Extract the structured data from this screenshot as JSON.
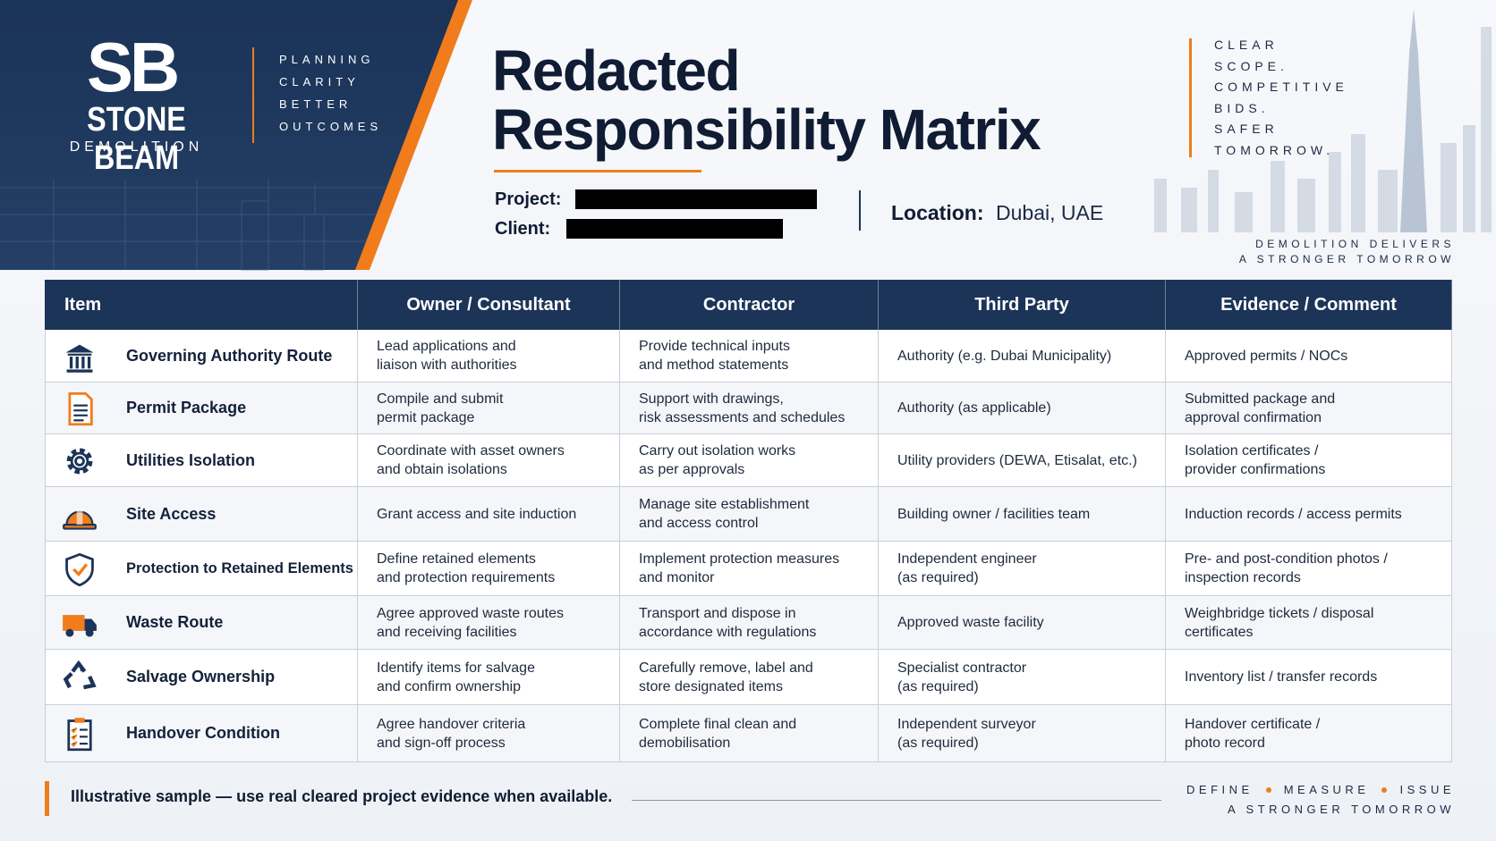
{
  "header": {
    "logo": "SB",
    "company": "STONE BEAM",
    "division": "DEMOLITION",
    "tagline": [
      "PLANNING",
      "CLARITY",
      "BETTER",
      "OUTCOMES"
    ],
    "title_lines": [
      "Redacted",
      "Responsibility Matrix"
    ],
    "project_label": "Project:",
    "client_label": "Client:",
    "location_label": "Location:",
    "location": "Dubai, UAE",
    "motto": [
      "CLEAR",
      "SCOPE.",
      "COMPETITIVE",
      "BIDS.",
      "SAFER",
      "TOMORROW."
    ],
    "strapline": [
      "DEMOLITION DELIVERS",
      "A STRONGER TOMORROW"
    ]
  },
  "table": {
    "columns": [
      "Item",
      "Owner / Consultant",
      "Contractor",
      "Third Party",
      "Evidence / Comment"
    ],
    "rows": [
      [
        "Governing Authority Route",
        "Lead applications and\nliaison with authorities",
        "Provide technical inputs\nand method statements",
        "Authority (e.g. Dubai Municipality)",
        "Approved permits / NOCs"
      ],
      [
        "Permit Package",
        "Compile and submit\npermit package",
        "Support with drawings,\nrisk assessments and schedules",
        "Authority (as applicable)",
        "Submitted package and\napproval confirmation"
      ],
      [
        "Utilities Isolation",
        "Coordinate with asset owners\nand obtain isolations",
        "Carry out isolation works\nas per approvals",
        "Utility providers (DEWA, Etisalat, etc.)",
        "Isolation certificates /\nprovider confirmations"
      ],
      [
        "Site Access",
        "Grant access and site induction",
        "Manage site establishment\nand access control",
        "Building owner / facilities team",
        "Induction records / access permits"
      ],
      [
        "Protection to Retained Elements",
        "Define retained elements\nand protection requirements",
        "Implement protection measures\nand monitor",
        "Independent engineer\n(as required)",
        "Pre- and post-condition photos /\ninspection records"
      ],
      [
        "Waste Route",
        "Agree approved waste routes\nand receiving facilities",
        "Transport and dispose in\naccordance with regulations",
        "Approved waste facility",
        "Weighbridge tickets / disposal\ncertificates"
      ],
      [
        "Salvage Ownership",
        "Identify items for salvage\nand confirm ownership",
        "Carefully remove, label and\nstore designated items",
        "Specialist contractor\n(as required)",
        "Inventory list / transfer records"
      ],
      [
        "Handover Condition",
        "Agree handover criteria\nand sign-off process",
        "Complete final clean and\ndemobilisation",
        "Independent surveyor\n(as required)",
        "Handover certificate /\nphoto record"
      ]
    ]
  },
  "footer": {
    "note": "Illustrative sample — use real cleared project evidence when available.",
    "steps": [
      "DEFINE",
      "MEASURE",
      "ISSUE"
    ],
    "strapline": "A STRONGER TOMORROW"
  }
}
